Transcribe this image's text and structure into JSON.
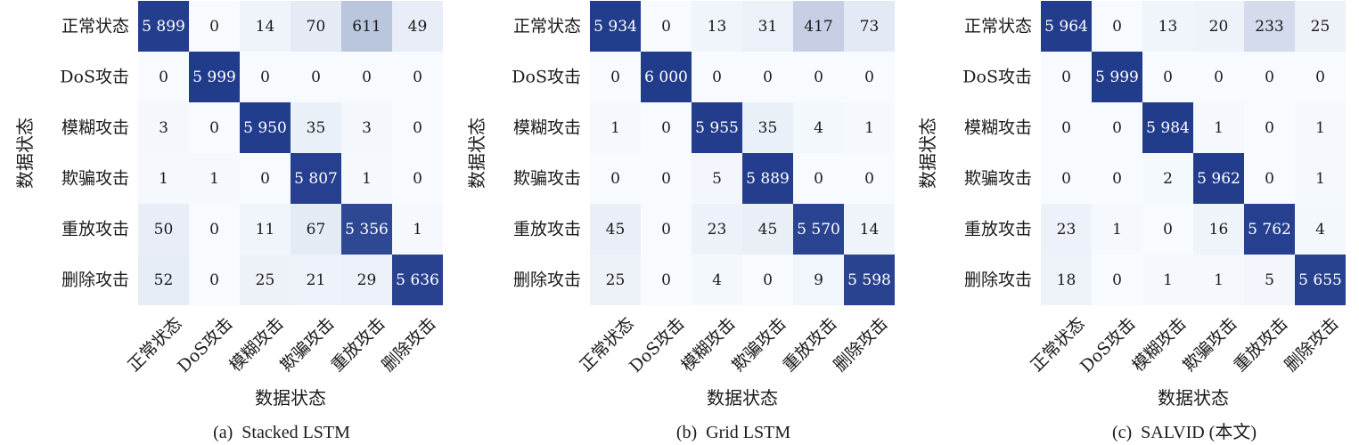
{
  "chart_data": [
    {
      "type": "heatmap",
      "caption": "(a)  Stacked LSTM",
      "xlabel": "数据状态",
      "ylabel": "数据状态",
      "categories": [
        "正常状态",
        "DoS攻击",
        "模糊攻击",
        "欺骗攻击",
        "重放攻击",
        "删除攻击"
      ],
      "matrix": [
        [
          5899,
          0,
          14,
          70,
          611,
          49
        ],
        [
          0,
          5999,
          0,
          0,
          0,
          0
        ],
        [
          3,
          0,
          5950,
          35,
          3,
          0
        ],
        [
          1,
          1,
          0,
          5807,
          1,
          0
        ],
        [
          50,
          0,
          11,
          67,
          5356,
          1
        ],
        [
          52,
          0,
          25,
          21,
          29,
          5636
        ]
      ],
      "cell_labels": [
        [
          "5 899",
          "0",
          "14",
          "70",
          "611",
          "49"
        ],
        [
          "0",
          "5 999",
          "0",
          "0",
          "0",
          "0"
        ],
        [
          "3",
          "0",
          "5 950",
          "35",
          "3",
          "0"
        ],
        [
          "1",
          "1",
          "0",
          "5 807",
          "1",
          "0"
        ],
        [
          "50",
          "0",
          "11",
          "67",
          "5 356",
          "1"
        ],
        [
          "52",
          "0",
          "25",
          "21",
          "29",
          "5 636"
        ]
      ]
    },
    {
      "type": "heatmap",
      "caption": "(b)  Grid LSTM",
      "xlabel": "数据状态",
      "ylabel": "数据状态",
      "categories": [
        "正常状态",
        "DoS攻击",
        "模糊攻击",
        "欺骗攻击",
        "重放攻击",
        "删除攻击"
      ],
      "matrix": [
        [
          5934,
          0,
          13,
          31,
          417,
          73
        ],
        [
          0,
          6000,
          0,
          0,
          0,
          0
        ],
        [
          1,
          0,
          5955,
          35,
          4,
          1
        ],
        [
          0,
          0,
          5,
          5889,
          0,
          0
        ],
        [
          45,
          0,
          23,
          45,
          5570,
          14
        ],
        [
          25,
          0,
          4,
          0,
          9,
          5598
        ]
      ],
      "cell_labels": [
        [
          "5 934",
          "0",
          "13",
          "31",
          "417",
          "73"
        ],
        [
          "0",
          "6 000",
          "0",
          "0",
          "0",
          "0"
        ],
        [
          "1",
          "0",
          "5 955",
          "35",
          "4",
          "1"
        ],
        [
          "0",
          "0",
          "5",
          "5 889",
          "0",
          "0"
        ],
        [
          "45",
          "0",
          "23",
          "45",
          "5 570",
          "14"
        ],
        [
          "25",
          "0",
          "4",
          "0",
          "9",
          "5 598"
        ]
      ]
    },
    {
      "type": "heatmap",
      "caption": "(c)  SALVID (本文)",
      "xlabel": "数据状态",
      "ylabel": "数据状态",
      "categories": [
        "正常状态",
        "DoS攻击",
        "模糊攻击",
        "欺骗攻击",
        "重放攻击",
        "删除攻击"
      ],
      "matrix": [
        [
          5964,
          0,
          13,
          20,
          233,
          25
        ],
        [
          0,
          5999,
          0,
          0,
          0,
          0
        ],
        [
          0,
          0,
          5984,
          1,
          0,
          1
        ],
        [
          0,
          0,
          2,
          5962,
          0,
          1
        ],
        [
          23,
          1,
          0,
          16,
          5762,
          4
        ],
        [
          18,
          0,
          1,
          1,
          5,
          5655
        ]
      ],
      "cell_labels": [
        [
          "5 964",
          "0",
          "13",
          "20",
          "233",
          "25"
        ],
        [
          "0",
          "5 999",
          "0",
          "0",
          "0",
          "0"
        ],
        [
          "0",
          "0",
          "5 984",
          "1",
          "0",
          "1"
        ],
        [
          "0",
          "0",
          "2",
          "5 962",
          "0",
          "1"
        ],
        [
          "23",
          "1",
          "0",
          "16",
          "5 762",
          "4"
        ],
        [
          "18",
          "0",
          "1",
          "1",
          "5",
          "5 655"
        ]
      ]
    }
  ],
  "colors": {
    "low": "#f7fbff",
    "high": "#223c8c",
    "text_dark": "#1a1a1a",
    "text_light": "#ffffff"
  }
}
